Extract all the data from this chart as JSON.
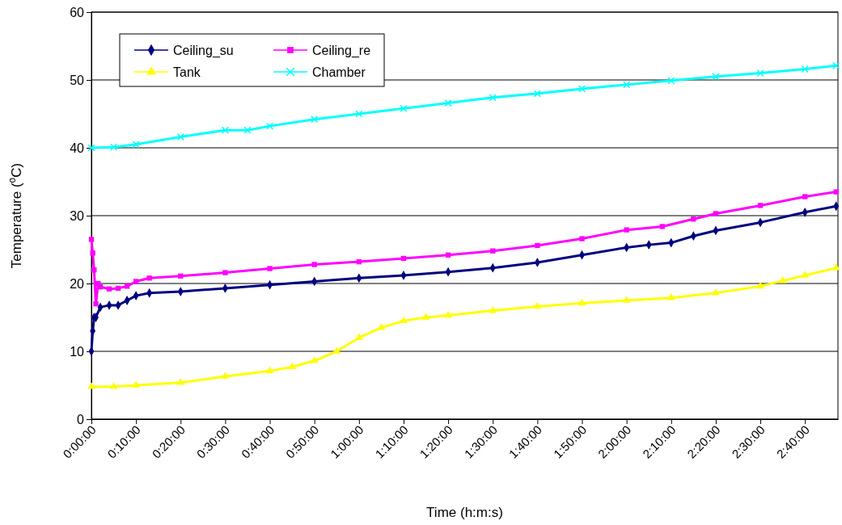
{
  "chart_data": {
    "type": "line",
    "xlabel": "Time (h:m:s)",
    "ylabel": "Temperature ($^{o}$C)",
    "xlim": [
      0,
      2.79
    ],
    "ylim": [
      0,
      60
    ],
    "yticks": [
      0,
      10,
      20,
      30,
      40,
      50,
      60
    ],
    "xticks": [
      {
        "value": 0,
        "label": "0:00:00"
      },
      {
        "value": 0.1667,
        "label": "0:10:00"
      },
      {
        "value": 0.3333,
        "label": "0:20:00"
      },
      {
        "value": 0.5,
        "label": "0:30:00"
      },
      {
        "value": 0.6667,
        "label": "0:40:00"
      },
      {
        "value": 0.8333,
        "label": "0:50:00"
      },
      {
        "value": 1,
        "label": "1:00:00"
      },
      {
        "value": 1.1667,
        "label": "1:10:00"
      },
      {
        "value": 1.3333,
        "label": "1:20:00"
      },
      {
        "value": 1.5,
        "label": "1:30:00"
      },
      {
        "value": 1.6667,
        "label": "1:40:00"
      },
      {
        "value": 1.8333,
        "label": "1:50:00"
      },
      {
        "value": 2,
        "label": "2:00:00"
      },
      {
        "value": 2.1667,
        "label": "2:10:00"
      },
      {
        "value": 2.3333,
        "label": "2:20:00"
      },
      {
        "value": 2.5,
        "label": "2:30:00"
      },
      {
        "value": 2.6667,
        "label": "2:40:00"
      }
    ],
    "grid": "y",
    "legend": "top left",
    "line_style": "solid",
    "series": [
      {
        "name": "Ceiling_su",
        "color": "#000080",
        "marker": "diamond",
        "x": [
          0,
          0.005,
          0.01,
          0.0167,
          0.0333,
          0.0667,
          0.1,
          0.1333,
          0.1667,
          0.2167,
          0.3333,
          0.5,
          0.6667,
          0.8333,
          1,
          1.1667,
          1.3333,
          1.5,
          1.6667,
          1.8333,
          2,
          2.0833,
          2.1667,
          2.25,
          2.3333,
          2.5,
          2.6667,
          2.7833
        ],
        "values": [
          10,
          13,
          15,
          15,
          16.5,
          16.8,
          16.8,
          17.5,
          18.2,
          18.6,
          18.8,
          19.3,
          19.8,
          20.3,
          20.8,
          21.2,
          21.7,
          22.3,
          23.1,
          24.2,
          25.3,
          25.7,
          26,
          27,
          27.8,
          29,
          30.5,
          31.4
        ]
      },
      {
        "name": "Ceiling_re",
        "color": "#ff00ff",
        "marker": "square",
        "x": [
          0,
          0.005,
          0.01,
          0.0167,
          0.025,
          0.0333,
          0.0667,
          0.1,
          0.1333,
          0.1667,
          0.2167,
          0.3333,
          0.5,
          0.6667,
          0.8333,
          1,
          1.1667,
          1.3333,
          1.5,
          1.6667,
          1.8333,
          2,
          2.1333,
          2.25,
          2.3333,
          2.5,
          2.6667,
          2.7833
        ],
        "values": [
          26.5,
          24.5,
          22,
          17,
          20,
          19.5,
          19.2,
          19.3,
          19.6,
          20.3,
          20.8,
          21.1,
          21.6,
          22.2,
          22.8,
          23.2,
          23.7,
          24.2,
          24.8,
          25.6,
          26.6,
          27.9,
          28.4,
          29.5,
          30.3,
          31.5,
          32.8,
          33.5
        ]
      },
      {
        "name": "Tank",
        "color": "#ffff00",
        "marker": "triangle",
        "x": [
          0,
          0.0833,
          0.1667,
          0.3333,
          0.5,
          0.6667,
          0.75,
          0.8333,
          0.9167,
          1,
          1.0833,
          1.1667,
          1.25,
          1.3333,
          1.5,
          1.6667,
          1.8333,
          2,
          2.1667,
          2.3333,
          2.5,
          2.5833,
          2.6667,
          2.7833
        ],
        "values": [
          4.8,
          4.8,
          5,
          5.4,
          6.3,
          7.1,
          7.7,
          8.6,
          10,
          12,
          13.5,
          14.5,
          15,
          15.3,
          16,
          16.6,
          17.1,
          17.5,
          17.9,
          18.6,
          19.6,
          20.4,
          21.2,
          22.3
        ]
      },
      {
        "name": "Chamber",
        "color": "#00ffff",
        "marker": "cross",
        "x": [
          0,
          0.0833,
          0.1667,
          0.3333,
          0.5,
          0.5833,
          0.6667,
          0.8333,
          1,
          1.1667,
          1.3333,
          1.5,
          1.6667,
          1.8333,
          2,
          2.1667,
          2.3333,
          2.5,
          2.6667,
          2.7833
        ],
        "values": [
          40,
          40.1,
          40.5,
          41.6,
          42.6,
          42.6,
          43.2,
          44.2,
          45,
          45.8,
          46.6,
          47.4,
          48,
          48.7,
          49.3,
          49.9,
          50.5,
          51,
          51.6,
          52.1
        ]
      }
    ]
  }
}
